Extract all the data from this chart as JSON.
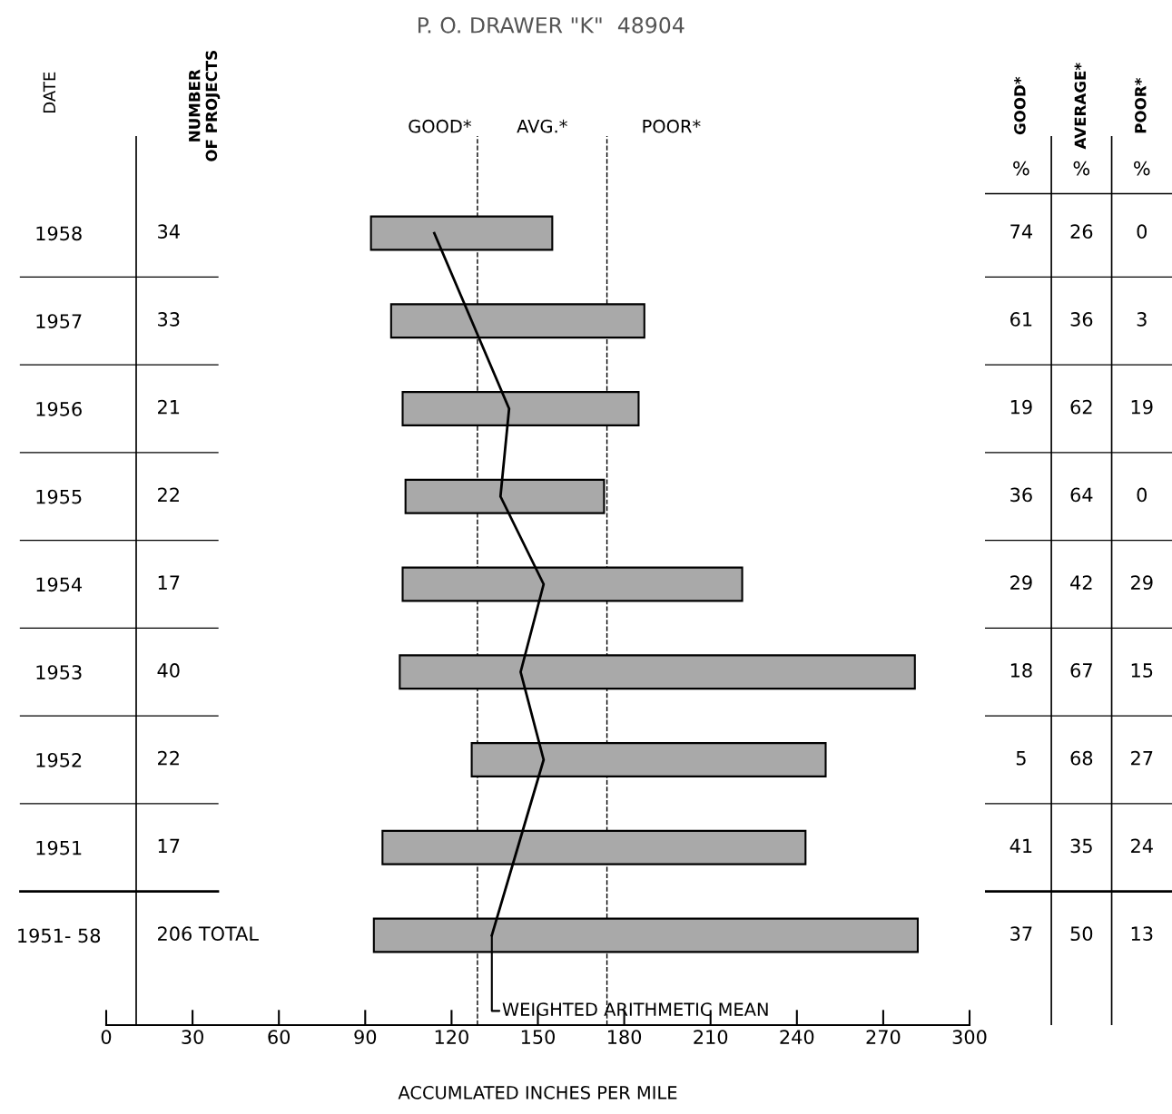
{
  "chart_data": [
    {
      "type": "bar",
      "orientation": "horizontal",
      "title": "P. O. DRAWER \"K\"  48904",
      "ylabel": "DATE",
      "xlabel": "ACCUMLATED INCHES PER MILE",
      "categories": [
        "1958",
        "1957",
        "1956",
        "1955",
        "1954",
        "1953",
        "1952",
        "1951",
        "1951- 58"
      ],
      "series": [
        {
          "type": "bar",
          "color": "#a9a9a9",
          "base": [
            92,
            99,
            103,
            104,
            103,
            102,
            127,
            96,
            93
          ],
          "values": [
            63,
            88,
            82,
            69,
            118,
            179,
            123,
            147,
            189
          ]
        },
        {
          "type": "line",
          "color": "#000000",
          "values": [
            114,
            127,
            140,
            137,
            152,
            144,
            152,
            143,
            134
          ]
        }
      ],
      "ref_lines": [
        {
          "axis": "x",
          "value": 129,
          "line_style": "dashed",
          "color": "#000000"
        },
        {
          "axis": "x",
          "value": 174,
          "line_style": "dashed",
          "color": "#000000"
        }
      ],
      "annotations": [
        "GOOD*",
        "AVG.*",
        "POOR*",
        {
          "text": "WEIGHTED ARITHMETIC MEAN",
          "x": 134,
          "y": "1951- 58"
        }
      ],
      "xlim": [
        0,
        300
      ],
      "xticks": [
        0,
        30,
        60,
        90,
        120,
        150,
        180,
        210,
        240,
        270,
        300
      ],
      "grid": false
    },
    {
      "type": "other",
      "categories": [
        "NUMBER\nOF PROJECTS"
      ],
      "cell_labels": [
        [
          "34"
        ],
        [
          "33"
        ],
        [
          "21"
        ],
        [
          "22"
        ],
        [
          "17"
        ],
        [
          "40"
        ],
        [
          "22"
        ],
        [
          "17"
        ],
        [
          "206 TOTAL"
        ]
      ]
    },
    {
      "type": "other",
      "categories": [
        "GOOD*",
        "AVERAGE*",
        "POOR*"
      ],
      "cell_labels": [
        [
          "%",
          "%",
          "%"
        ],
        [
          "74",
          "26",
          "0"
        ],
        [
          "61",
          "36",
          "3"
        ],
        [
          "19",
          "62",
          "19"
        ],
        [
          "36",
          "64",
          "0"
        ],
        [
          "29",
          "42",
          "29"
        ],
        [
          "18",
          "67",
          "15"
        ],
        [
          "5",
          "68",
          "27"
        ],
        [
          "41",
          "35",
          "24"
        ],
        [
          "37",
          "50",
          "13"
        ]
      ]
    }
  ]
}
